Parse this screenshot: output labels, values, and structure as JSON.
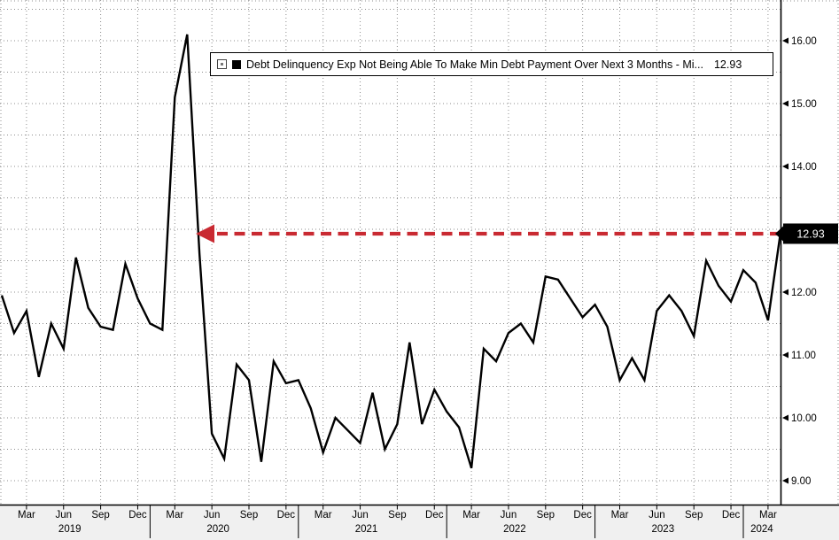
{
  "colors": {
    "background": "#ffffff",
    "grid": "#8c8c8c",
    "series": "#000000",
    "annotation_red": "#c92a32",
    "bottom_band": "#f0f0f0",
    "badge_bg": "#000000",
    "badge_text": "#ffffff"
  },
  "legend": {
    "value": "12.93"
  },
  "chart_data": {
    "type": "line",
    "title": "",
    "legend_position": "top",
    "x_start": "2019-01",
    "x_end": "2024-04",
    "x_frequency": "monthly",
    "ylim": [
      8.6,
      16.7
    ],
    "grid": {
      "style": "dotted",
      "y_step": 0.5,
      "x_step": "quarterly"
    },
    "series": [
      {
        "name": "Debt Delinquency Exp Not Being Able To Make Min Debt Payment Over Next 3 Months - Mi...",
        "color": "#000000",
        "last_value": 12.93,
        "values": [
          11.95,
          11.35,
          11.7,
          10.65,
          11.5,
          11.1,
          12.55,
          11.75,
          11.45,
          11.4,
          12.45,
          11.9,
          11.5,
          11.4,
          15.1,
          16.1,
          12.6,
          9.75,
          9.35,
          10.85,
          10.6,
          9.3,
          10.9,
          10.55,
          10.6,
          10.15,
          9.45,
          10.0,
          9.8,
          9.6,
          10.4,
          9.5,
          9.9,
          11.2,
          9.9,
          10.45,
          10.1,
          9.85,
          9.2,
          11.1,
          10.9,
          11.35,
          11.5,
          11.2,
          12.25,
          12.2,
          11.9,
          11.6,
          11.8,
          11.45,
          10.6,
          10.95,
          10.6,
          11.7,
          11.95,
          11.7,
          11.3,
          12.5,
          12.1,
          11.85,
          12.35,
          12.15,
          11.55,
          12.93
        ]
      }
    ],
    "yticks": [
      {
        "v": 16,
        "label": "16.00"
      },
      {
        "v": 15,
        "label": "15.00"
      },
      {
        "v": 14,
        "label": "14.00"
      },
      {
        "v": 13,
        "label": "13.00",
        "hidden_behind_badge": true
      },
      {
        "v": 12,
        "label": "12.00"
      },
      {
        "v": 11,
        "label": "11.00"
      },
      {
        "v": 10,
        "label": "10.00"
      },
      {
        "v": 9,
        "label": "9.00"
      }
    ],
    "xticks": [
      {
        "m": 2,
        "label": "Mar"
      },
      {
        "m": 5,
        "label": "Jun"
      },
      {
        "m": 8,
        "label": "Sep"
      },
      {
        "m": 11,
        "label": "Dec"
      },
      {
        "m": 14,
        "label": "Mar"
      },
      {
        "m": 17,
        "label": "Jun"
      },
      {
        "m": 20,
        "label": "Sep"
      },
      {
        "m": 23,
        "label": "Dec"
      },
      {
        "m": 26,
        "label": "Mar"
      },
      {
        "m": 29,
        "label": "Jun"
      },
      {
        "m": 32,
        "label": "Sep"
      },
      {
        "m": 35,
        "label": "Dec"
      },
      {
        "m": 38,
        "label": "Mar"
      },
      {
        "m": 41,
        "label": "Jun"
      },
      {
        "m": 44,
        "label": "Sep"
      },
      {
        "m": 47,
        "label": "Dec"
      },
      {
        "m": 50,
        "label": "Mar"
      },
      {
        "m": 53,
        "label": "Jun"
      },
      {
        "m": 56,
        "label": "Sep"
      },
      {
        "m": 59,
        "label": "Dec"
      },
      {
        "m": 62,
        "label": "Mar"
      }
    ],
    "years": [
      {
        "label": "2019",
        "start_m": 0,
        "end_m": 11
      },
      {
        "label": "2020",
        "start_m": 12,
        "end_m": 23
      },
      {
        "label": "2021",
        "start_m": 24,
        "end_m": 35
      },
      {
        "label": "2022",
        "start_m": 36,
        "end_m": 47
      },
      {
        "label": "2023",
        "start_m": 48,
        "end_m": 59
      },
      {
        "label": "2024",
        "start_m": 60,
        "end_m": 63
      }
    ],
    "annotation": {
      "type": "dashed-arrow-pointing-left",
      "color": "#c92a32",
      "y_value": 12.93,
      "points_to": "2020-05"
    },
    "last_value_badge": {
      "label": "12.93",
      "bg": "#000000",
      "text_color": "#ffffff"
    }
  }
}
